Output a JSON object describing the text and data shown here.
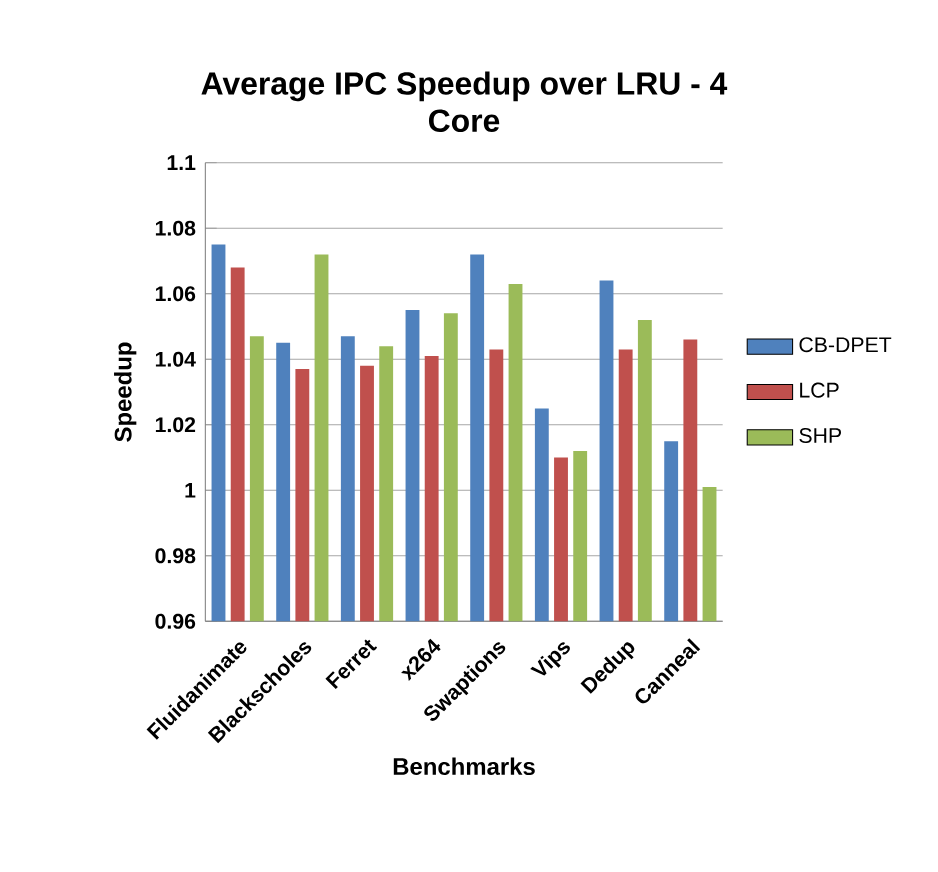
{
  "chart_data": {
    "type": "bar",
    "title": "Average IPC Speedup over LRU - 4 Core",
    "xlabel": "Benchmarks",
    "ylabel": "Speedup",
    "categories": [
      "Fluidanimate",
      "Blackscholes",
      "Ferret",
      "x264",
      "Swaptions",
      "Vips",
      "Dedup",
      "Canneal"
    ],
    "series": [
      {
        "name": "CB-DPET",
        "color": "#4f81bd",
        "values": [
          1.075,
          1.045,
          1.047,
          1.055,
          1.072,
          1.025,
          1.064,
          1.015
        ]
      },
      {
        "name": "LCP",
        "color": "#c0504d",
        "values": [
          1.068,
          1.037,
          1.038,
          1.041,
          1.043,
          1.01,
          1.043,
          1.046
        ]
      },
      {
        "name": "SHP",
        "color": "#9bbb59",
        "values": [
          1.047,
          1.072,
          1.044,
          1.054,
          1.063,
          1.012,
          1.052,
          1.001
        ]
      }
    ],
    "ylim": [
      0.96,
      1.1
    ],
    "yticks": [
      0.96,
      0.98,
      1,
      1.02,
      1.04,
      1.06,
      1.08,
      1.1
    ],
    "grid": "y",
    "legend": "right"
  }
}
